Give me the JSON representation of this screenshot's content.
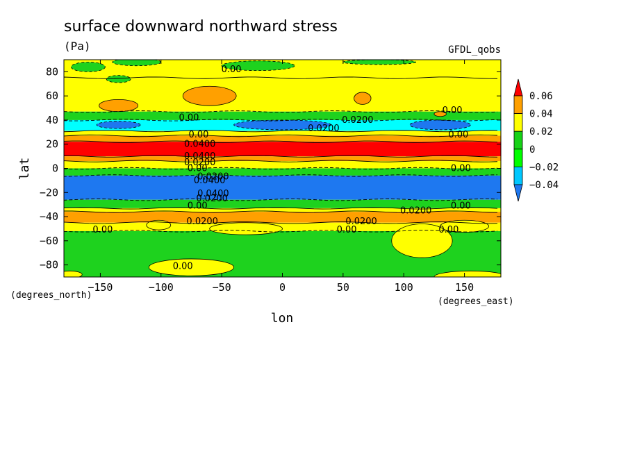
{
  "chart_data": {
    "type": "heatmap",
    "title": "surface downward northward stress",
    "units": "(Pa)",
    "dataset": "GFDL_qobs",
    "xlabel": "lon",
    "ylabel": "lat",
    "xunits": "(degrees_east)",
    "yunits": "(degrees_north)",
    "xlim": [
      -180,
      180
    ],
    "ylim": [
      -90,
      90
    ],
    "xticks": [
      -150,
      -100,
      -50,
      0,
      50,
      100,
      150
    ],
    "yticks": [
      -80,
      -60,
      -40,
      -20,
      0,
      20,
      40,
      60,
      80
    ],
    "colorbar": {
      "levels": [
        -0.04,
        -0.02,
        0,
        0.02,
        0.04,
        0.06
      ],
      "labels": [
        "−0.04",
        "−0.02",
        "0",
        "0.02",
        "0.04",
        "0.06"
      ],
      "colors": [
        "#1e78f0",
        "#00c8ff",
        "#00ff00",
        "#16d216",
        "#ffff00",
        "#ffa000",
        "#ff0000"
      ],
      "band_colors": [
        "#1e78f0",
        "#00ffff",
        "#1ed21e",
        "#ffff00",
        "#ffa000",
        "#ff0000"
      ]
    },
    "zonal_bands": [
      {
        "lat_min": 75,
        "lat_max": 90,
        "value": 0.01
      },
      {
        "lat_min": 47,
        "lat_max": 75,
        "value": 0.01
      },
      {
        "lat_min": 40,
        "lat_max": 47,
        "value": -0.01
      },
      {
        "lat_min": 31,
        "lat_max": 40,
        "value": -0.03
      },
      {
        "lat_min": 27,
        "lat_max": 31,
        "value": 0.01
      },
      {
        "lat_min": 22,
        "lat_max": 27,
        "value": 0.03
      },
      {
        "lat_min": 10,
        "lat_max": 22,
        "value": 0.05
      },
      {
        "lat_min": 6,
        "lat_max": 10,
        "value": 0.03
      },
      {
        "lat_min": 0,
        "lat_max": 6,
        "value": 0.01
      },
      {
        "lat_min": -6,
        "lat_max": 0,
        "value": -0.01
      },
      {
        "lat_min": -26,
        "lat_max": -6,
        "value": -0.05
      },
      {
        "lat_min": -33,
        "lat_max": -26,
        "value": -0.01
      },
      {
        "lat_min": -36,
        "lat_max": -33,
        "value": 0.01
      },
      {
        "lat_min": -45,
        "lat_max": -36,
        "value": 0.03
      },
      {
        "lat_min": -52,
        "lat_max": -45,
        "value": 0.01
      },
      {
        "lat_min": -90,
        "lat_max": -52,
        "value": -0.01
      }
    ],
    "contour_labels": [
      {
        "text": "0.00",
        "lon": -42,
        "lat": 82
      },
      {
        "text": "0.00",
        "lon": -77,
        "lat": 42
      },
      {
        "text": "0.00",
        "lon": 140,
        "lat": 48
      },
      {
        "text": "0.0200",
        "lon": 62,
        "lat": 40
      },
      {
        "text": "0.0200",
        "lon": 34,
        "lat": 33
      },
      {
        "text": "0.00",
        "lon": -69,
        "lat": 28
      },
      {
        "text": "0.00",
        "lon": 145,
        "lat": 28
      },
      {
        "text": "0.0400",
        "lon": -68,
        "lat": 20
      },
      {
        "text": "0.0400",
        "lon": -68,
        "lat": 10
      },
      {
        "text": "0.0200",
        "lon": -68,
        "lat": 5
      },
      {
        "text": "0.00",
        "lon": -70,
        "lat": 0
      },
      {
        "text": "0.00",
        "lon": 147,
        "lat": 0
      },
      {
        "text": "0.0200",
        "lon": -57,
        "lat": -7
      },
      {
        "text": "0.0400",
        "lon": -60,
        "lat": -10
      },
      {
        "text": "0.0400",
        "lon": -57,
        "lat": -21
      },
      {
        "text": "0.0200",
        "lon": -58,
        "lat": -25
      },
      {
        "text": "0.00",
        "lon": -70,
        "lat": -31
      },
      {
        "text": "0.00",
        "lon": 147,
        "lat": -31
      },
      {
        "text": "0.0200",
        "lon": 110,
        "lat": -35
      },
      {
        "text": "0.0200",
        "lon": -66,
        "lat": -44
      },
      {
        "text": "0.0200",
        "lon": 65,
        "lat": -44
      },
      {
        "text": "0.00",
        "lon": 53,
        "lat": -51
      },
      {
        "text": "0.00",
        "lon": -148,
        "lat": -51
      },
      {
        "text": "0.00",
        "lon": 137,
        "lat": -51
      },
      {
        "text": "0.00",
        "lon": -82,
        "lat": -81
      }
    ],
    "blobs": [
      {
        "lon": -135,
        "lat": 52,
        "rx": 16,
        "ry": 5,
        "value": 0.03
      },
      {
        "lon": -60,
        "lat": 60,
        "rx": 22,
        "ry": 8,
        "value": 0.03
      },
      {
        "lon": 66,
        "lat": 58,
        "rx": 7,
        "ry": 5,
        "value": 0.03
      },
      {
        "lon": 130,
        "lat": 45,
        "rx": 5,
        "ry": 2,
        "value": 0.03
      },
      {
        "lon": 0,
        "lat": 36,
        "rx": 40,
        "ry": 4,
        "value": -0.05
      },
      {
        "lon": 130,
        "lat": 36,
        "rx": 25,
        "ry": 4,
        "value": -0.05
      },
      {
        "lon": -135,
        "lat": 36,
        "rx": 18,
        "ry": 3,
        "value": -0.05
      },
      {
        "lon": -120,
        "lat": 88,
        "rx": 20,
        "ry": 3,
        "value": -0.01
      },
      {
        "lon": -20,
        "lat": 85,
        "rx": 30,
        "ry": 4,
        "value": -0.01
      },
      {
        "lon": 80,
        "lat": 88,
        "rx": 30,
        "ry": 2,
        "value": -0.01
      },
      {
        "lon": -135,
        "lat": 74,
        "rx": 10,
        "ry": 3,
        "value": -0.01
      },
      {
        "lon": -160,
        "lat": 84,
        "rx": 14,
        "ry": 4,
        "value": -0.01
      },
      {
        "lon": -102,
        "lat": -47,
        "rx": 10,
        "ry": 4,
        "value": 0.01
      },
      {
        "lon": 150,
        "lat": -48,
        "rx": 20,
        "ry": 5,
        "value": 0.01
      },
      {
        "lon": -30,
        "lat": -50,
        "rx": 30,
        "ry": 5,
        "value": 0.01
      },
      {
        "lon": 115,
        "lat": -60,
        "rx": 25,
        "ry": 14,
        "value": 0.01
      },
      {
        "lon": -75,
        "lat": -82,
        "rx": 35,
        "ry": 7,
        "value": 0.01
      },
      {
        "lon": 155,
        "lat": -90,
        "rx": 30,
        "ry": 5,
        "value": 0.01
      },
      {
        "lon": -175,
        "lat": -88,
        "rx": 10,
        "ry": 3,
        "value": 0.01
      }
    ]
  }
}
